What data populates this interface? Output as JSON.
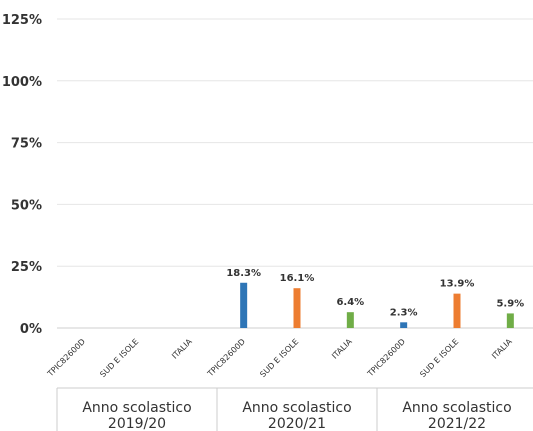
{
  "chart_data": {
    "type": "bar",
    "y_ticks": [
      "125%",
      "100%",
      "75%",
      "50%",
      "25%",
      "0%"
    ],
    "ylim": [
      0,
      125
    ],
    "grid": true,
    "groups": [
      {
        "line1": "Anno scolastico",
        "line2": "2019/20"
      },
      {
        "line1": "Anno scolastico",
        "line2": "2020/21"
      },
      {
        "line1": "Anno scolastico",
        "line2": "2021/22"
      }
    ],
    "categories": [
      "TPIC82600D",
      "SUD E ISOLE",
      "ITALIA",
      "TPIC82600D",
      "SUD E ISOLE",
      "ITALIA",
      "TPIC82600D",
      "SUD E ISOLE",
      "ITALIA"
    ],
    "values": [
      null,
      null,
      null,
      18.3,
      16.1,
      6.4,
      2.3,
      13.9,
      5.9
    ],
    "labels": [
      "",
      "",
      "",
      "18.3%",
      "16.1%",
      "6.4%",
      "2.3%",
      "13.9%",
      "5.9%"
    ],
    "colors": [
      "#2e75b6",
      "#ed7d31",
      "#70ad47",
      "#2e75b6",
      "#ed7d31",
      "#70ad47",
      "#2e75b6",
      "#ed7d31",
      "#70ad47"
    ]
  }
}
